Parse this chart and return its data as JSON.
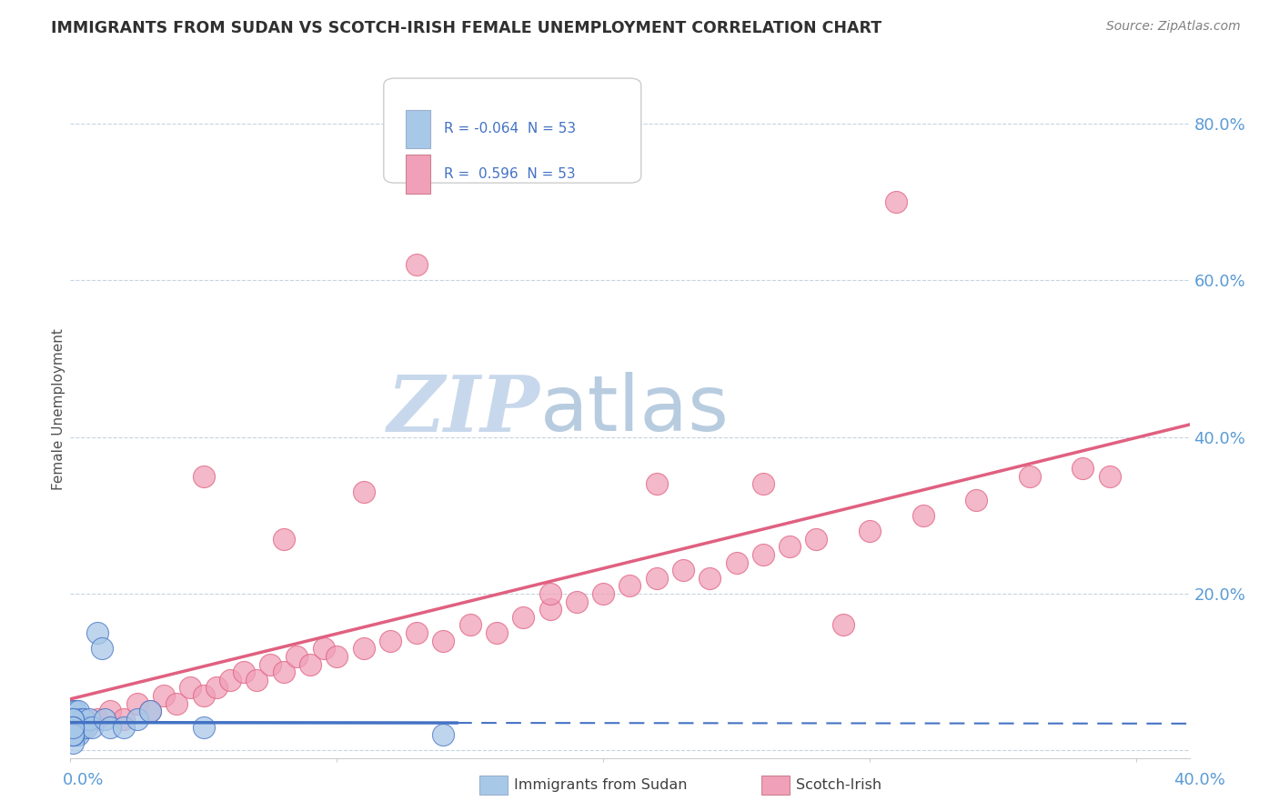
{
  "title": "IMMIGRANTS FROM SUDAN VS SCOTCH-IRISH FEMALE UNEMPLOYMENT CORRELATION CHART",
  "source": "Source: ZipAtlas.com",
  "ylabel": "Female Unemployment",
  "y_ticks": [
    0.0,
    0.2,
    0.4,
    0.6,
    0.8
  ],
  "y_tick_labels": [
    "",
    "20.0%",
    "40.0%",
    "60.0%",
    "80.0%"
  ],
  "xlim": [
    0.0,
    0.42
  ],
  "ylim": [
    -0.01,
    0.88
  ],
  "color_blue": "#a8c8e8",
  "color_pink": "#f0a0b8",
  "color_blue_line": "#4472c4",
  "color_pink_line": "#e06080",
  "color_title": "#303030",
  "color_source": "#808080",
  "color_watermark_zip": "#c8d8ec",
  "color_watermark_atlas": "#b8cce0",
  "color_axis_labels": "#5b9bd5",
  "background_color": "#ffffff",
  "grid_color": "#c0d0e0",
  "sudan_x": [
    0.001,
    0.001,
    0.001,
    0.001,
    0.001,
    0.001,
    0.001,
    0.001,
    0.001,
    0.001,
    0.001,
    0.001,
    0.001,
    0.002,
    0.002,
    0.002,
    0.002,
    0.002,
    0.002,
    0.002,
    0.002,
    0.003,
    0.003,
    0.003,
    0.003,
    0.003,
    0.004,
    0.004,
    0.005,
    0.006,
    0.007,
    0.008,
    0.01,
    0.012,
    0.013,
    0.015,
    0.02,
    0.025,
    0.03,
    0.05,
    0.001,
    0.001,
    0.001,
    0.001,
    0.001,
    0.001,
    0.001,
    0.001,
    0.001,
    0.001,
    0.14,
    0.001,
    0.001
  ],
  "sudan_y": [
    0.02,
    0.03,
    0.04,
    0.05,
    0.02,
    0.03,
    0.04,
    0.02,
    0.03,
    0.02,
    0.04,
    0.03,
    0.05,
    0.03,
    0.04,
    0.02,
    0.05,
    0.03,
    0.04,
    0.02,
    0.03,
    0.04,
    0.02,
    0.03,
    0.05,
    0.03,
    0.04,
    0.03,
    0.04,
    0.03,
    0.04,
    0.03,
    0.15,
    0.13,
    0.04,
    0.03,
    0.03,
    0.04,
    0.05,
    0.03,
    0.02,
    0.03,
    0.04,
    0.02,
    0.03,
    0.04,
    0.02,
    0.01,
    0.03,
    0.02,
    0.02,
    0.02,
    0.03
  ],
  "scotch_x": [
    0.005,
    0.01,
    0.015,
    0.02,
    0.025,
    0.03,
    0.035,
    0.04,
    0.045,
    0.05,
    0.055,
    0.06,
    0.065,
    0.07,
    0.075,
    0.08,
    0.085,
    0.09,
    0.095,
    0.1,
    0.11,
    0.12,
    0.13,
    0.14,
    0.15,
    0.16,
    0.17,
    0.18,
    0.19,
    0.2,
    0.21,
    0.22,
    0.23,
    0.24,
    0.25,
    0.26,
    0.27,
    0.28,
    0.3,
    0.32,
    0.34,
    0.36,
    0.38,
    0.39,
    0.05,
    0.08,
    0.11,
    0.18,
    0.22,
    0.29,
    0.13,
    0.26,
    0.31
  ],
  "scotch_y": [
    0.03,
    0.04,
    0.05,
    0.04,
    0.06,
    0.05,
    0.07,
    0.06,
    0.08,
    0.07,
    0.08,
    0.09,
    0.1,
    0.09,
    0.11,
    0.1,
    0.12,
    0.11,
    0.13,
    0.12,
    0.13,
    0.14,
    0.15,
    0.14,
    0.16,
    0.15,
    0.17,
    0.18,
    0.19,
    0.2,
    0.21,
    0.22,
    0.23,
    0.22,
    0.24,
    0.25,
    0.26,
    0.27,
    0.28,
    0.3,
    0.32,
    0.35,
    0.36,
    0.35,
    0.35,
    0.27,
    0.33,
    0.2,
    0.34,
    0.16,
    0.62,
    0.34,
    0.7
  ],
  "blue_line_x": [
    0.0,
    0.145,
    0.145,
    0.42
  ],
  "blue_line_solid_end": 0.145,
  "pink_line_x_start": 0.0,
  "pink_line_x_end": 0.42,
  "pink_line_y_start": 0.005,
  "pink_line_y_end": 0.365
}
